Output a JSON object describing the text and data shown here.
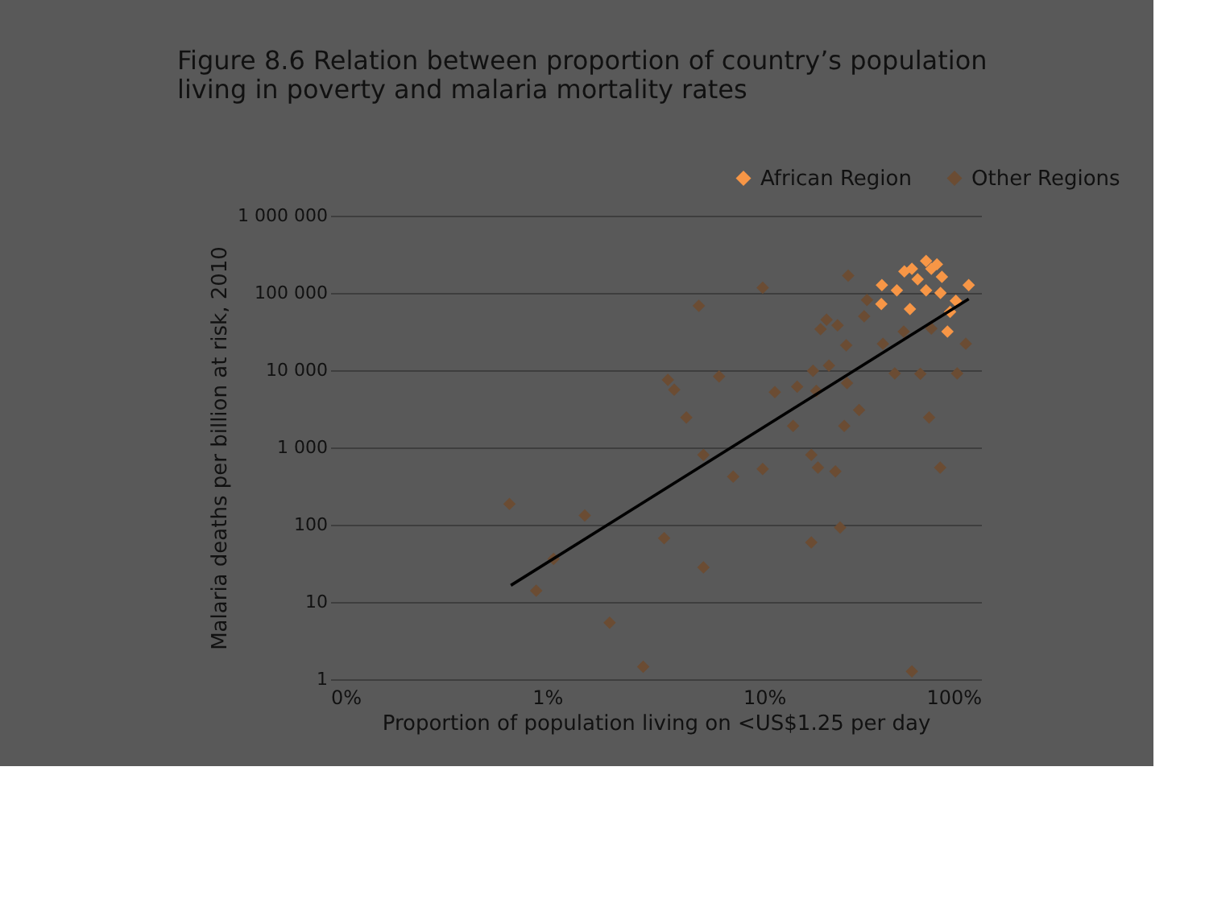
{
  "chart_data": {
    "type": "scatter",
    "title": "Figure 8.6 Relation between proportion of country’s population living in poverty and malaria mortality rates",
    "xlabel": "Proportion of population living on <US$1.25 per day",
    "ylabel": "Malaria deaths per billion at risk, 2010",
    "log": "xy",
    "xlim": [
      0.1,
      100
    ],
    "ylim": [
      1,
      1000000
    ],
    "xticks": [
      {
        "value": 0.1,
        "label": "0%"
      },
      {
        "value": 1,
        "label": "1%"
      },
      {
        "value": 10,
        "label": "10%"
      },
      {
        "value": 100,
        "label": "100%"
      }
    ],
    "yticks": [
      {
        "value": 1,
        "label": "1"
      },
      {
        "value": 10,
        "label": "10"
      },
      {
        "value": 100,
        "label": "100"
      },
      {
        "value": 1000,
        "label": "1 000"
      },
      {
        "value": 10000,
        "label": "10 000"
      },
      {
        "value": 100000,
        "label": "100 000"
      },
      {
        "value": 1000000,
        "label": "1 000 000"
      }
    ],
    "grid": "y",
    "legend": "top right",
    "marker": "diamond",
    "series": [
      {
        "name": "African Region",
        "color": "#f79646",
        "x": [
          34.9,
          40.9,
          44.3,
          51,
          55.8,
          62.6,
          66,
          55.8,
          65,
          87.7,
          76.5,
          34.7,
          47,
          72,
          70,
          48,
          59
        ],
        "values": [
          126000,
          108000,
          190000,
          150000,
          260000,
          235000,
          162000,
          108000,
          100000,
          126000,
          79000,
          72000,
          62000,
          57000,
          31600,
          205000,
          205000
        ]
      },
      {
        "name": "Other Regions",
        "color": "#6b4c33",
        "x": [
          0.67,
          1.49,
          1.07,
          0.89,
          1.94,
          2.77,
          24.4,
          9.85,
          5.0,
          29.8,
          28.9,
          19.4,
          18.2,
          21.8,
          23.9,
          35.3,
          85.0,
          40,
          52.5,
          77.6,
          19.9,
          16.8,
          24.1,
          14.2,
          17.4,
          11.2,
          6.2,
          3.6,
          3.85,
          4.38,
          27.4,
          23.4,
          13.6,
          57.6,
          5.25,
          16.5,
          17.7,
          21.3,
          64.8,
          9.85,
          7.2,
          3.46,
          5.25,
          22.4,
          16.5,
          48,
          44,
          59
        ],
        "values": [
          186,
          132,
          36,
          14,
          5.4,
          1.45,
          167000,
          117000,
          68000,
          81000,
          50000,
          45000,
          34000,
          38000,
          21000,
          22000,
          22000,
          9100,
          9000,
          9100,
          11500,
          9800,
          6800,
          6100,
          5400,
          5200,
          8300,
          7500,
          5600,
          2450,
          3050,
          1900,
          1900,
          2450,
          800,
          800,
          550,
          490,
          550,
          525,
          420,
          67,
          28,
          92,
          59,
          1.26,
          31600,
          34500
        ]
      },
      {
        "type": "line",
        "color": "#000000",
        "marker": "none",
        "line_style": "solid",
        "x": [
          0.68,
          87.7
        ],
        "values": [
          16.4,
          83700
        ]
      }
    ]
  }
}
